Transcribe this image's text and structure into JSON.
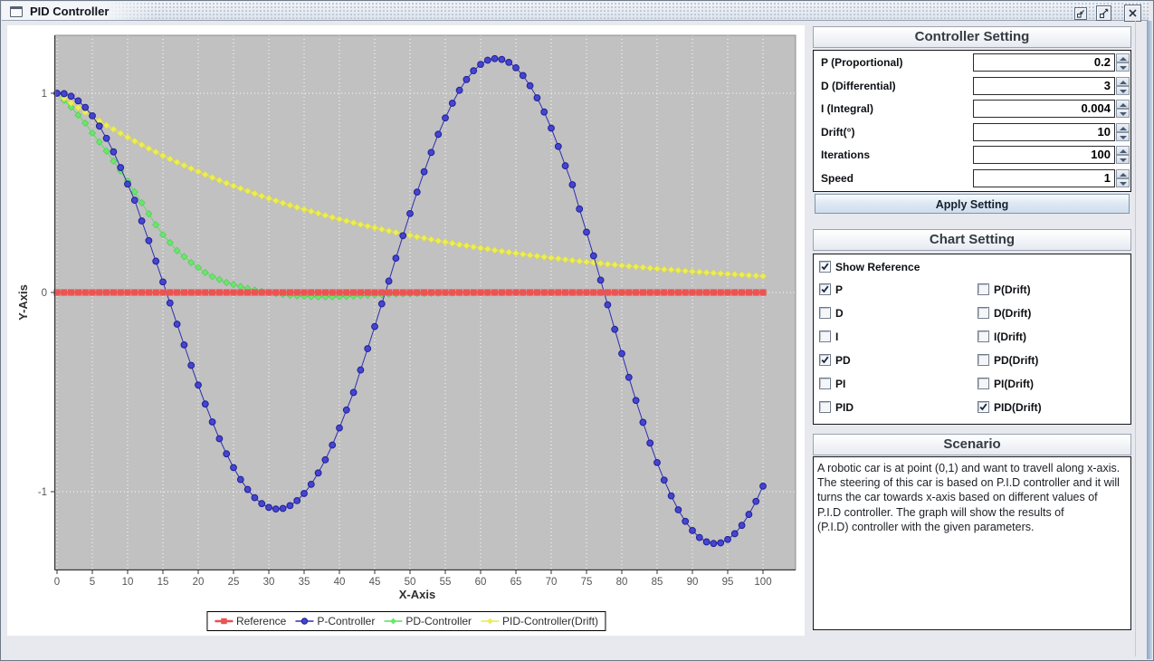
{
  "window": {
    "title": "PID Controller",
    "controls": [
      "iconify",
      "maximize",
      "close"
    ]
  },
  "controller_setting": {
    "title": "Controller Setting",
    "fields": [
      {
        "label": "P (Proportional)",
        "value": "0.2"
      },
      {
        "label": "D (Differential)",
        "value": "3"
      },
      {
        "label": "I (Integral)",
        "value": "0.004"
      },
      {
        "label": "Drift(°)",
        "value": "10"
      },
      {
        "label": "Iterations",
        "value": "100"
      },
      {
        "label": "Speed",
        "value": "1"
      }
    ],
    "apply_label": "Apply Setting"
  },
  "chart_setting": {
    "title": "Chart Setting",
    "checkboxes": [
      {
        "label": "Show Reference",
        "checked": true
      },
      {
        "label": "P",
        "checked": true
      },
      {
        "label": "P(Drift)",
        "checked": false
      },
      {
        "label": "D",
        "checked": false
      },
      {
        "label": "D(Drift)",
        "checked": false
      },
      {
        "label": "I",
        "checked": false
      },
      {
        "label": "I(Drift)",
        "checked": false
      },
      {
        "label": "PD",
        "checked": true
      },
      {
        "label": "PD(Drift)",
        "checked": false
      },
      {
        "label": "PI",
        "checked": false
      },
      {
        "label": "PI(Drift)",
        "checked": false
      },
      {
        "label": "PID",
        "checked": false
      },
      {
        "label": "PID(Drift)",
        "checked": true
      }
    ]
  },
  "scenario": {
    "title": "Scenario",
    "text": "A robotic car is at point (0,1) and want to travell along x-axis.\n The steering of this car is based on P.I.D controller and it will\n turns the car towards x-axis based on different values of\nP.I.D controller. The graph will show the results of\n(P.I.D) controller with the given parameters."
  },
  "chart_data": {
    "type": "line",
    "xlabel": "X-Axis",
    "ylabel": "Y-Axis",
    "x_ticks": [
      0,
      5,
      10,
      15,
      20,
      25,
      30,
      35,
      40,
      45,
      50,
      55,
      60,
      65,
      70,
      75,
      80,
      85,
      90,
      95,
      100
    ],
    "y_ticks": [
      1,
      0,
      -1
    ],
    "xlim": [
      0,
      104
    ],
    "ylim": [
      -1.39,
      1.29
    ],
    "grid": true,
    "plot_bg": "#c1c1c1",
    "grid_color": "#fdfdfd",
    "legend_position": "bottom",
    "draw_order": [
      2,
      3,
      1,
      0
    ],
    "series": [
      {
        "name": "Reference",
        "marker": "square",
        "color": "#ea5452",
        "stroke": "none",
        "line": "#e85050",
        "line_width": 2,
        "x_start": 0,
        "x_step": 1,
        "y_const": 0,
        "count": 101
      },
      {
        "name": "P-Controller",
        "marker": "circle",
        "color": "#4545cf",
        "stroke": "#1f1f98",
        "line": "#2e2eb0",
        "line_width": 1,
        "x_start": 0,
        "x_step": 1,
        "y": [
          1.0,
          0.998,
          0.985,
          0.962,
          0.929,
          0.887,
          0.835,
          0.774,
          0.706,
          0.627,
          0.544,
          0.463,
          0.359,
          0.26,
          0.157,
          0.053,
          -0.053,
          -0.159,
          -0.263,
          -0.366,
          -0.465,
          -0.56,
          -0.65,
          -0.734,
          -0.81,
          -0.879,
          -0.939,
          -0.989,
          -1.03,
          -1.06,
          -1.079,
          -1.087,
          -1.084,
          -1.07,
          -1.045,
          -1.009,
          -0.963,
          -0.906,
          -0.84,
          -0.766,
          -0.68,
          -0.59,
          -0.502,
          -0.389,
          -0.282,
          -0.171,
          -0.057,
          0.057,
          0.172,
          0.285,
          0.396,
          0.504,
          0.606,
          0.703,
          0.794,
          0.876,
          0.95,
          1.015,
          1.069,
          1.113,
          1.145,
          1.166,
          1.174,
          1.17,
          1.155,
          1.128,
          1.089,
          1.038,
          0.977,
          0.906,
          0.825,
          0.733,
          0.636,
          0.541,
          0.419,
          0.303,
          0.184,
          0.062,
          -0.062,
          -0.185,
          -0.307,
          -0.426,
          -0.542,
          -0.652,
          -0.756,
          -0.854,
          -0.942,
          -1.021,
          -1.091,
          -1.149,
          -1.195,
          -1.23,
          -1.252,
          -1.26,
          -1.257,
          -1.24,
          -1.211,
          -1.169,
          -1.114,
          -1.049,
          -0.972
        ]
      },
      {
        "name": "PD-Controller",
        "marker": "diamond",
        "color": "#68e868",
        "stroke": "#4cc755",
        "line": "#5ade5a",
        "line_width": 1,
        "x_start": 0,
        "x_step": 1,
        "y": [
          1.0,
          0.965,
          0.93,
          0.89,
          0.85,
          0.8,
          0.755,
          0.71,
          0.66,
          0.61,
          0.56,
          0.505,
          0.45,
          0.395,
          0.34,
          0.29,
          0.25,
          0.21,
          0.18,
          0.15,
          0.125,
          0.1,
          0.08,
          0.065,
          0.05,
          0.04,
          0.03,
          0.02,
          0.012,
          0.005,
          0,
          -0.005,
          -0.01,
          -0.014,
          -0.017,
          -0.019,
          -0.021,
          -0.022,
          -0.022,
          -0.022,
          -0.021,
          -0.02,
          -0.018,
          -0.016,
          -0.014,
          -0.012,
          -0.011,
          -0.009,
          -0.008,
          -0.007,
          -0.006,
          -0.005,
          -0.005,
          -0.004,
          -0.004,
          -0.003,
          -0.003,
          -0.002,
          -0.002,
          -0.002,
          -0.001,
          -0.001,
          -0.001,
          -0.001,
          0,
          0,
          0,
          0,
          0,
          0,
          0,
          0,
          0,
          0,
          0,
          0,
          0,
          0,
          0,
          0,
          0,
          0,
          0,
          0,
          0,
          0,
          0,
          0,
          0,
          0,
          0,
          0,
          0,
          0,
          0,
          0,
          0,
          0,
          0,
          0,
          0
        ]
      },
      {
        "name": "PID-Controller(Drift)",
        "marker": "diamond",
        "color": "#eded58",
        "stroke": "#d9d942",
        "line": "#e8e84e",
        "line_width": 1,
        "x_start": 0,
        "x_step": 1,
        "y": [
          1.0,
          0.975,
          0.951,
          0.928,
          0.905,
          0.882,
          0.861,
          0.839,
          0.819,
          0.799,
          0.779,
          0.76,
          0.741,
          0.722,
          0.705,
          0.687,
          0.67,
          0.654,
          0.638,
          0.622,
          0.607,
          0.592,
          0.577,
          0.563,
          0.549,
          0.535,
          0.522,
          0.509,
          0.497,
          0.484,
          0.472,
          0.461,
          0.449,
          0.438,
          0.427,
          0.417,
          0.407,
          0.397,
          0.387,
          0.377,
          0.368,
          0.359,
          0.35,
          0.341,
          0.333,
          0.325,
          0.317,
          0.309,
          0.301,
          0.294,
          0.287,
          0.279,
          0.273,
          0.266,
          0.259,
          0.253,
          0.247,
          0.24,
          0.235,
          0.229,
          0.223,
          0.218,
          0.212,
          0.207,
          0.202,
          0.197,
          0.192,
          0.187,
          0.183,
          0.178,
          0.174,
          0.17,
          0.165,
          0.161,
          0.157,
          0.153,
          0.15,
          0.146,
          0.142,
          0.139,
          0.135,
          0.132,
          0.129,
          0.126,
          0.122,
          0.119,
          0.116,
          0.114,
          0.111,
          0.108,
          0.105,
          0.103,
          0.1,
          0.098,
          0.095,
          0.093,
          0.091,
          0.089,
          0.086,
          0.084,
          0.082
        ]
      }
    ]
  }
}
